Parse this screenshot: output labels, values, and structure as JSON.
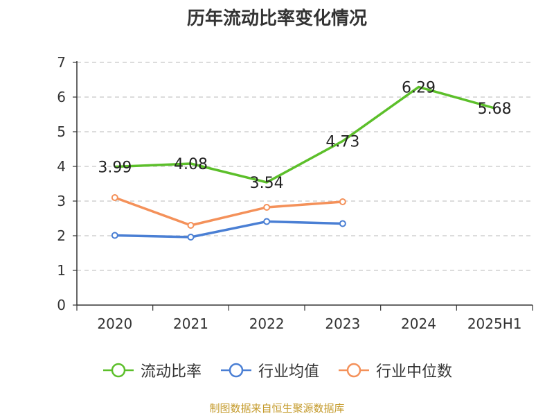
{
  "title": "历年流动比率变化情况",
  "source": "制图数据来自恒生聚源数据库",
  "chart_data": {
    "type": "line",
    "title": "历年流动比率变化情况",
    "categories": [
      "2020",
      "2021",
      "2022",
      "2023",
      "2024",
      "2025H1"
    ],
    "ylim": [
      0,
      7
    ],
    "yticks": [
      "0",
      "1",
      "2",
      "3",
      "4",
      "5",
      "6",
      "7"
    ],
    "grid": true,
    "legend_position": "bottom",
    "series": [
      {
        "name": "流动比率",
        "color": "#5cbf2a",
        "values": [
          3.99,
          4.08,
          3.54,
          4.73,
          6.29,
          5.68
        ],
        "labels": [
          "3.99",
          "4.08",
          "3.54",
          "4.73",
          "6.29",
          "5.68"
        ],
        "markers": false
      },
      {
        "name": "行业均值",
        "color": "#4a7fd4",
        "values": [
          2.01,
          1.96,
          2.41,
          2.35,
          null,
          null
        ],
        "markers": true
      },
      {
        "name": "行业中位数",
        "color": "#f4915a",
        "values": [
          3.1,
          2.3,
          2.82,
          2.98,
          null,
          null
        ],
        "markers": true
      }
    ]
  }
}
